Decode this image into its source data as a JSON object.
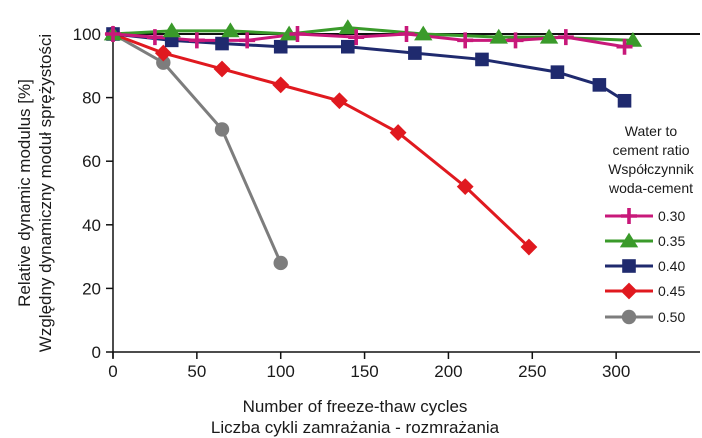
{
  "chart_data": {
    "type": "line",
    "xlabel": [
      "Number of freeze-thaw cycles",
      "Liczba cykli zamrażania - rozmrażania"
    ],
    "ylabel": [
      "Relative dynamic modulus [%]",
      "Względny dynamiczny moduł sprężystości"
    ],
    "xlim": [
      0,
      350
    ],
    "ylim": [
      0,
      100
    ],
    "xticks": [
      "0",
      "50",
      "100",
      "150",
      "200",
      "250",
      "300"
    ],
    "yticks": [
      "0",
      "20",
      "40",
      "60",
      "80",
      "100"
    ],
    "grid": false,
    "reference_line_y": 100,
    "legend_title": [
      "Water to",
      "cement ratio",
      "Współczynnik",
      "woda-cement"
    ],
    "legend_position": "right",
    "series": [
      {
        "name": "0.30",
        "color": "#c8187a",
        "marker": "plus",
        "x": [
          0,
          25,
          50,
          80,
          110,
          145,
          175,
          210,
          240,
          270,
          305
        ],
        "y": [
          100,
          99,
          98,
          98,
          100,
          99,
          100,
          98,
          98,
          99,
          96
        ]
      },
      {
        "name": "0.35",
        "color": "#3a9a2a",
        "marker": "triangle",
        "x": [
          0,
          35,
          70,
          105,
          140,
          185,
          230,
          260,
          310
        ],
        "y": [
          100,
          101,
          101,
          100,
          102,
          100,
          99,
          99,
          98
        ]
      },
      {
        "name": "0.40",
        "color": "#1f2a6e",
        "marker": "square",
        "x": [
          0,
          35,
          65,
          100,
          140,
          180,
          220,
          265,
          290,
          305
        ],
        "y": [
          100,
          98,
          97,
          96,
          96,
          94,
          92,
          88,
          84,
          79
        ]
      },
      {
        "name": "0.45",
        "color": "#e0191f",
        "marker": "diamond",
        "x": [
          0,
          30,
          65,
          100,
          135,
          170,
          210,
          248
        ],
        "y": [
          100,
          94,
          89,
          84,
          79,
          69,
          52,
          33
        ]
      },
      {
        "name": "0.50",
        "color": "#7d7d7d",
        "marker": "circle",
        "x": [
          0,
          30,
          65,
          100
        ],
        "y": [
          100,
          91,
          70,
          28
        ]
      }
    ]
  }
}
